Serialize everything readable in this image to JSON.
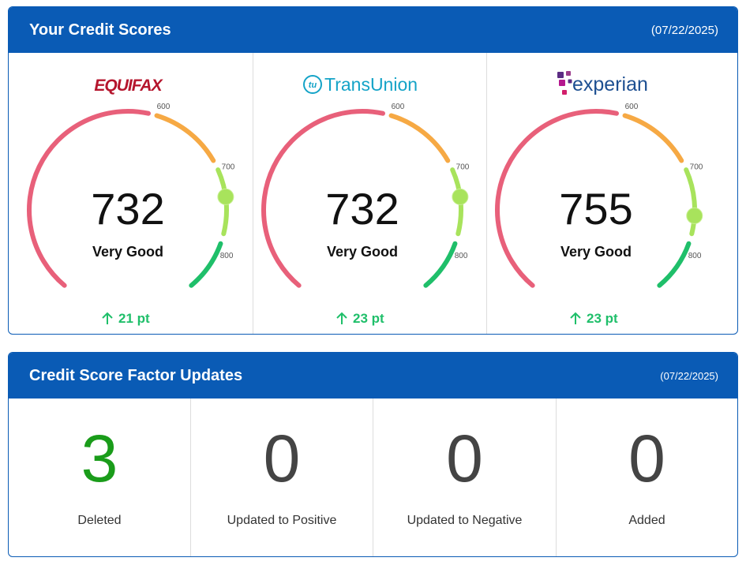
{
  "credit_scores": {
    "title": "Your Credit Scores",
    "date": "(07/22/2025)",
    "gauge_ticks": [
      600,
      700,
      800
    ],
    "bureaus": [
      {
        "name": "EQUIFAX",
        "score": 732,
        "rating": "Very Good",
        "change": "21 pt"
      },
      {
        "name": "TransUnion",
        "icon": "tu",
        "score": 732,
        "rating": "Very Good",
        "change": "23 pt"
      },
      {
        "name": "experian",
        "score": 755,
        "rating": "Very Good",
        "change": "23 pt"
      }
    ]
  },
  "factor_updates": {
    "title": "Credit Score Factor Updates",
    "date": "(07/22/2025)",
    "items": [
      {
        "count": 3,
        "label": "Deleted"
      },
      {
        "count": 0,
        "label": "Updated to Positive"
      },
      {
        "count": 0,
        "label": "Updated to Negative"
      },
      {
        "count": 0,
        "label": "Added"
      }
    ]
  }
}
